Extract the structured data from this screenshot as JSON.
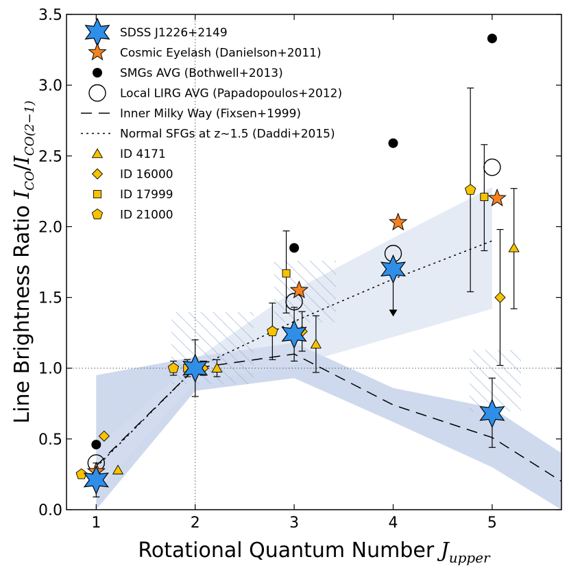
{
  "chart_data": {
    "type": "scatter",
    "title": "",
    "xlabel": "Rotational Quantum Number ",
    "xlabel_symbol": "J",
    "xlabel_sub": "upper",
    "ylabel": "Line Brightness Ratio ",
    "ylabel_symbol_num": "I",
    "ylabel_sub_num": "CO",
    "ylabel_symbol_den": "I",
    "ylabel_sub_den": "CO(2−1)",
    "xlim": [
      0.7,
      5.7
    ],
    "ylim": [
      0.0,
      3.5
    ],
    "x_ticks": [
      1,
      2,
      3,
      4,
      5
    ],
    "x_tick_labels": [
      "1",
      "2",
      "3",
      "4",
      "5"
    ],
    "y_ticks": [
      0.0,
      0.5,
      1.0,
      1.5,
      2.0,
      2.5,
      3.0,
      3.5
    ],
    "y_tick_labels": [
      "0.0",
      "0.5",
      "1.0",
      "1.5",
      "2.0",
      "2.5",
      "3.0",
      "3.5"
    ],
    "reference_lines": {
      "x": 2,
      "y": 1.0
    },
    "shaded_bands": [
      {
        "name": "Milky Way range",
        "upper": [
          [
            1.0,
            0.95
          ],
          [
            2.0,
            1.08
          ],
          [
            3.0,
            1.18
          ],
          [
            4.0,
            0.86
          ],
          [
            5.0,
            0.72
          ],
          [
            5.7,
            0.4
          ]
        ],
        "lower": [
          [
            5.7,
            0.0
          ],
          [
            5.0,
            0.3
          ],
          [
            4.0,
            0.62
          ],
          [
            3.0,
            0.93
          ],
          [
            2.0,
            0.84
          ],
          [
            1.0,
            0.0
          ]
        ]
      },
      {
        "name": "Normal SFGs range",
        "upper": [
          [
            1.0,
            0.43
          ],
          [
            2.0,
            1.06
          ],
          [
            3.0,
            1.55
          ],
          [
            4.0,
            1.92
          ],
          [
            5.0,
            2.28
          ]
        ],
        "lower": [
          [
            5.0,
            1.42
          ],
          [
            4.0,
            1.22
          ],
          [
            3.0,
            1.02
          ],
          [
            2.0,
            0.9
          ],
          [
            1.0,
            0.12
          ]
        ]
      }
    ],
    "series": [
      {
        "name": "SDSS J1226+2149",
        "marker": "star6",
        "color": "#2f8fe8",
        "points": [
          {
            "x": 1.0,
            "y": 0.21,
            "err": [
              0.12,
              0.12
            ]
          },
          {
            "x": 2.0,
            "y": 1.0,
            "err": [
              0.2,
              0.2
            ]
          },
          {
            "x": 3.0,
            "y": 1.24,
            "err": [
              0.19,
              0.19
            ]
          },
          {
            "x": 4.0,
            "y": 1.7,
            "upper_limit": true,
            "limit_to": 1.37
          },
          {
            "x": 5.0,
            "y": 0.68,
            "err": [
              0.24,
              0.25
            ]
          }
        ]
      },
      {
        "name": "Cosmic Eyelash (Danielson+2011)",
        "marker": "star5",
        "color": "#f58220",
        "points": [
          {
            "x": 1.0,
            "y": 0.27
          },
          {
            "x": 3.05,
            "y": 1.55
          },
          {
            "x": 4.05,
            "y": 2.03
          },
          {
            "x": 5.05,
            "y": 2.2
          }
        ]
      },
      {
        "name": "SMGs AVG (Bothwell+2013)",
        "marker": "circle-filled",
        "color": "#000000",
        "points": [
          {
            "x": 1.0,
            "y": 0.46
          },
          {
            "x": 3.0,
            "y": 1.85
          },
          {
            "x": 4.0,
            "y": 2.59
          },
          {
            "x": 5.0,
            "y": 3.33
          }
        ]
      },
      {
        "name": "Local LIRG AVG (Papadopoulos+2012)",
        "marker": "circle-open",
        "color": "#000000",
        "points": [
          {
            "x": 1.0,
            "y": 0.33
          },
          {
            "x": 3.0,
            "y": 1.47
          },
          {
            "x": 4.0,
            "y": 1.81
          },
          {
            "x": 5.0,
            "y": 2.42
          }
        ]
      },
      {
        "name": "Inner Milky Way (Fixsen+1999)",
        "marker": "line-dashed",
        "color": "#000000",
        "x": [
          1.0,
          2.0,
          3.0,
          4.0,
          5.0,
          5.7
        ],
        "y": [
          0.31,
          1.0,
          1.1,
          0.74,
          0.51,
          0.2
        ]
      },
      {
        "name": "Normal SFGs at z∼1.5 (Daddi+2015)",
        "marker": "line-dotted",
        "color": "#000000",
        "x": [
          1.0,
          2.0,
          3.0,
          4.0,
          5.0
        ],
        "y": [
          0.3,
          1.0,
          1.33,
          1.63,
          1.9
        ]
      },
      {
        "name": "ID 4171",
        "marker": "triangle",
        "color": "#f7c300",
        "points": [
          {
            "x": 1.22,
            "y": 0.28
          },
          {
            "x": 2.22,
            "y": 1.0,
            "err": [
              0.06,
              0.06
            ]
          },
          {
            "x": 3.22,
            "y": 1.17,
            "err": [
              0.2,
              0.2
            ]
          },
          {
            "x": 5.22,
            "y": 1.85,
            "err": [
              0.43,
              0.42
            ]
          }
        ]
      },
      {
        "name": "ID 16000",
        "marker": "diamond",
        "color": "#f7c300",
        "points": [
          {
            "x": 1.08,
            "y": 0.52
          },
          {
            "x": 2.08,
            "y": 1.0,
            "err": [
              0.05,
              0.05
            ]
          },
          {
            "x": 3.08,
            "y": 1.26,
            "err": [
              0.14,
              0.14
            ]
          },
          {
            "x": 5.08,
            "y": 1.5,
            "err": [
              0.48,
              0.48
            ]
          }
        ]
      },
      {
        "name": "ID 17999",
        "marker": "square",
        "color": "#f7c300",
        "points": [
          {
            "x": 1.92,
            "y": 1.0,
            "err": [
              0.06,
              0.06
            ]
          },
          {
            "x": 2.92,
            "y": 1.67,
            "err": [
              0.28,
              0.3
            ]
          },
          {
            "x": 4.92,
            "y": 2.21,
            "err": [
              0.38,
              0.37
            ]
          }
        ]
      },
      {
        "name": "ID 21000",
        "marker": "pentagon",
        "color": "#f7c300",
        "points": [
          {
            "x": 0.85,
            "y": 0.25
          },
          {
            "x": 1.78,
            "y": 1.0,
            "err": [
              0.05,
              0.05
            ]
          },
          {
            "x": 2.78,
            "y": 1.26,
            "err": [
              0.2,
              0.2
            ]
          },
          {
            "x": 4.78,
            "y": 2.26,
            "err": [
              0.72,
              0.72
            ]
          }
        ]
      }
    ],
    "legend": {
      "placement": "top-left",
      "entries": [
        "SDSS J1226+2149",
        "Cosmic Eyelash (Danielson+2011)",
        "SMGs AVG (Bothwell+2013)",
        "Local LIRG AVG (Papadopoulos+2012)",
        "Inner Milky Way (Fixsen+1999)",
        "Normal SFGs at z∼1.5 (Daddi+2015)",
        "ID 4171",
        "ID 16000",
        "ID 17999",
        "ID 21000"
      ]
    }
  }
}
